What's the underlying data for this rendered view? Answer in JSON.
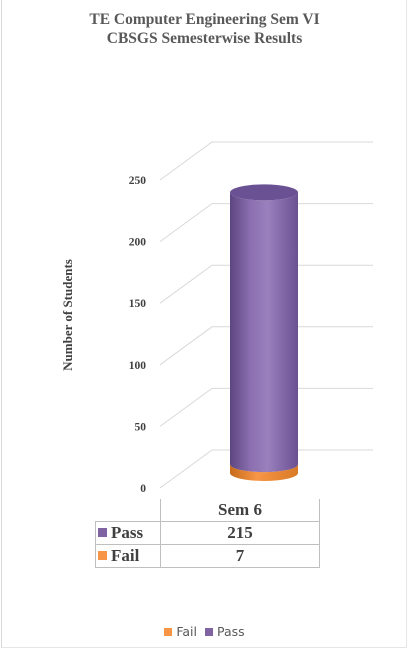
{
  "chart_data": {
    "type": "bar",
    "title_lines": [
      "TE Computer  Engineering  Sem VI",
      "CBSGS Semesterwise Results"
    ],
    "xlabel": "",
    "ylabel": "Number of Students",
    "categories": [
      "Sem 6"
    ],
    "series": [
      {
        "name": "Pass",
        "values": [
          215
        ],
        "color": "#8064a2"
      },
      {
        "name": "Fail",
        "values": [
          7
        ],
        "color": "#f79646"
      }
    ],
    "stacked": true,
    "shape": "3d-cylinder",
    "ylim": [
      0,
      250
    ],
    "y_ticks": [
      0,
      50,
      100,
      150,
      200,
      250
    ],
    "grid": true,
    "legend": "bottom",
    "legend_items": [
      {
        "name": "Fail",
        "color": "#f79646"
      },
      {
        "name": "Pass",
        "color": "#8064a2"
      }
    ],
    "data_table": true
  }
}
